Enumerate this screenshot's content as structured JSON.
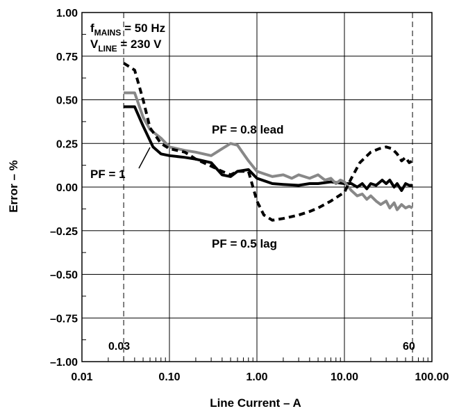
{
  "chart_data": {
    "type": "line",
    "xlabel": "Line Current – A",
    "ylabel": "Error – %",
    "x_scale": "log",
    "xlim": [
      0.01,
      100
    ],
    "ylim": [
      -1.0,
      1.0
    ],
    "grid": true,
    "x_ticks": [
      "0.01",
      "0.10",
      "1.00",
      "10.00",
      "100.00"
    ],
    "y_ticks": [
      "1.00",
      "0.75",
      "0.50",
      "0.25",
      "0.00",
      "–0.25",
      "–0.50",
      "–0.75",
      "–1.00"
    ],
    "conditions": [
      {
        "main": "f",
        "sub": "MAINS",
        "rest": " = 50 Hz"
      },
      {
        "main": "V",
        "sub": "LINE",
        "rest": " = 230 V"
      }
    ],
    "markers": [
      {
        "x": 0.03,
        "label": "0.03"
      },
      {
        "x": 60,
        "label": "60"
      }
    ],
    "series": [
      {
        "name": "PF = 1",
        "color": "#000000",
        "style": "solid",
        "points": [
          [
            0.03,
            0.46
          ],
          [
            0.04,
            0.46
          ],
          [
            0.05,
            0.35
          ],
          [
            0.065,
            0.23
          ],
          [
            0.08,
            0.19
          ],
          [
            0.1,
            0.18
          ],
          [
            0.15,
            0.17
          ],
          [
            0.2,
            0.16
          ],
          [
            0.3,
            0.14
          ],
          [
            0.4,
            0.07
          ],
          [
            0.5,
            0.06
          ],
          [
            0.6,
            0.09
          ],
          [
            0.8,
            0.1
          ],
          [
            1.0,
            0.05
          ],
          [
            1.5,
            0.02
          ],
          [
            2.0,
            0.015
          ],
          [
            3.0,
            0.01
          ],
          [
            4.0,
            0.02
          ],
          [
            5.0,
            0.02
          ],
          [
            7.0,
            0.03
          ],
          [
            10.0,
            0.02
          ],
          [
            12.0,
            0.02
          ],
          [
            14.0,
            0.0
          ],
          [
            16.0,
            0.02
          ],
          [
            18.0,
            -0.01
          ],
          [
            20.0,
            0.02
          ],
          [
            23.0,
            0.01
          ],
          [
            27.0,
            0.04
          ],
          [
            30.0,
            0.02
          ],
          [
            33.0,
            0.04
          ],
          [
            37.0,
            0.0
          ],
          [
            40.0,
            0.02
          ],
          [
            45.0,
            -0.02
          ],
          [
            50.0,
            0.02
          ],
          [
            55.0,
            0.01
          ],
          [
            60.0,
            0.01
          ]
        ]
      },
      {
        "name": "PF = 0.8 lead",
        "color": "#888888",
        "style": "solid",
        "points": [
          [
            0.03,
            0.54
          ],
          [
            0.04,
            0.54
          ],
          [
            0.05,
            0.4
          ],
          [
            0.06,
            0.33
          ],
          [
            0.08,
            0.28
          ],
          [
            0.1,
            0.23
          ],
          [
            0.15,
            0.21
          ],
          [
            0.2,
            0.2
          ],
          [
            0.3,
            0.18
          ],
          [
            0.4,
            0.22
          ],
          [
            0.5,
            0.25
          ],
          [
            0.6,
            0.24
          ],
          [
            0.8,
            0.15
          ],
          [
            1.0,
            0.09
          ],
          [
            1.5,
            0.06
          ],
          [
            2.0,
            0.07
          ],
          [
            2.5,
            0.05
          ],
          [
            3.0,
            0.07
          ],
          [
            4.0,
            0.05
          ],
          [
            5.0,
            0.07
          ],
          [
            6.0,
            0.04
          ],
          [
            7.0,
            0.05
          ],
          [
            8.0,
            0.02
          ],
          [
            9.0,
            0.04
          ],
          [
            10.0,
            0.03
          ],
          [
            12.0,
            -0.02
          ],
          [
            14.0,
            -0.05
          ],
          [
            16.0,
            -0.04
          ],
          [
            18.0,
            -0.07
          ],
          [
            20.0,
            -0.05
          ],
          [
            23.0,
            -0.08
          ],
          [
            26.0,
            -0.1
          ],
          [
            30.0,
            -0.08
          ],
          [
            33.0,
            -0.12
          ],
          [
            37.0,
            -0.09
          ],
          [
            40.0,
            -0.13
          ],
          [
            45.0,
            -0.1
          ],
          [
            50.0,
            -0.12
          ],
          [
            55.0,
            -0.11
          ],
          [
            60.0,
            -0.12
          ]
        ]
      },
      {
        "name": "PF = 0.5 lag",
        "color": "#000000",
        "style": "dashed",
        "points": [
          [
            0.03,
            0.71
          ],
          [
            0.04,
            0.67
          ],
          [
            0.05,
            0.5
          ],
          [
            0.06,
            0.34
          ],
          [
            0.08,
            0.25
          ],
          [
            0.1,
            0.22
          ],
          [
            0.15,
            0.2
          ],
          [
            0.2,
            0.16
          ],
          [
            0.3,
            0.12
          ],
          [
            0.4,
            0.09
          ],
          [
            0.5,
            0.07
          ],
          [
            0.6,
            0.09
          ],
          [
            0.8,
            0.09
          ],
          [
            1.0,
            -0.08
          ],
          [
            1.2,
            -0.16
          ],
          [
            1.5,
            -0.19
          ],
          [
            2.0,
            -0.18
          ],
          [
            3.0,
            -0.16
          ],
          [
            4.0,
            -0.14
          ],
          [
            5.0,
            -0.12
          ],
          [
            7.0,
            -0.08
          ],
          [
            10.0,
            -0.03
          ],
          [
            12.0,
            0.05
          ],
          [
            15.0,
            0.14
          ],
          [
            20.0,
            0.2
          ],
          [
            25.0,
            0.22
          ],
          [
            30.0,
            0.23
          ],
          [
            35.0,
            0.22
          ],
          [
            40.0,
            0.19
          ],
          [
            45.0,
            0.15
          ],
          [
            50.0,
            0.17
          ],
          [
            55.0,
            0.14
          ],
          [
            60.0,
            0.15
          ]
        ]
      }
    ],
    "annotations": [
      {
        "text": "PF = 0.8 lead",
        "series": "PF = 0.8 lead"
      },
      {
        "text": "PF = 1",
        "series": "PF = 1"
      },
      {
        "text": "PF = 0.5 lag",
        "series": "PF = 0.5 lag"
      }
    ]
  }
}
